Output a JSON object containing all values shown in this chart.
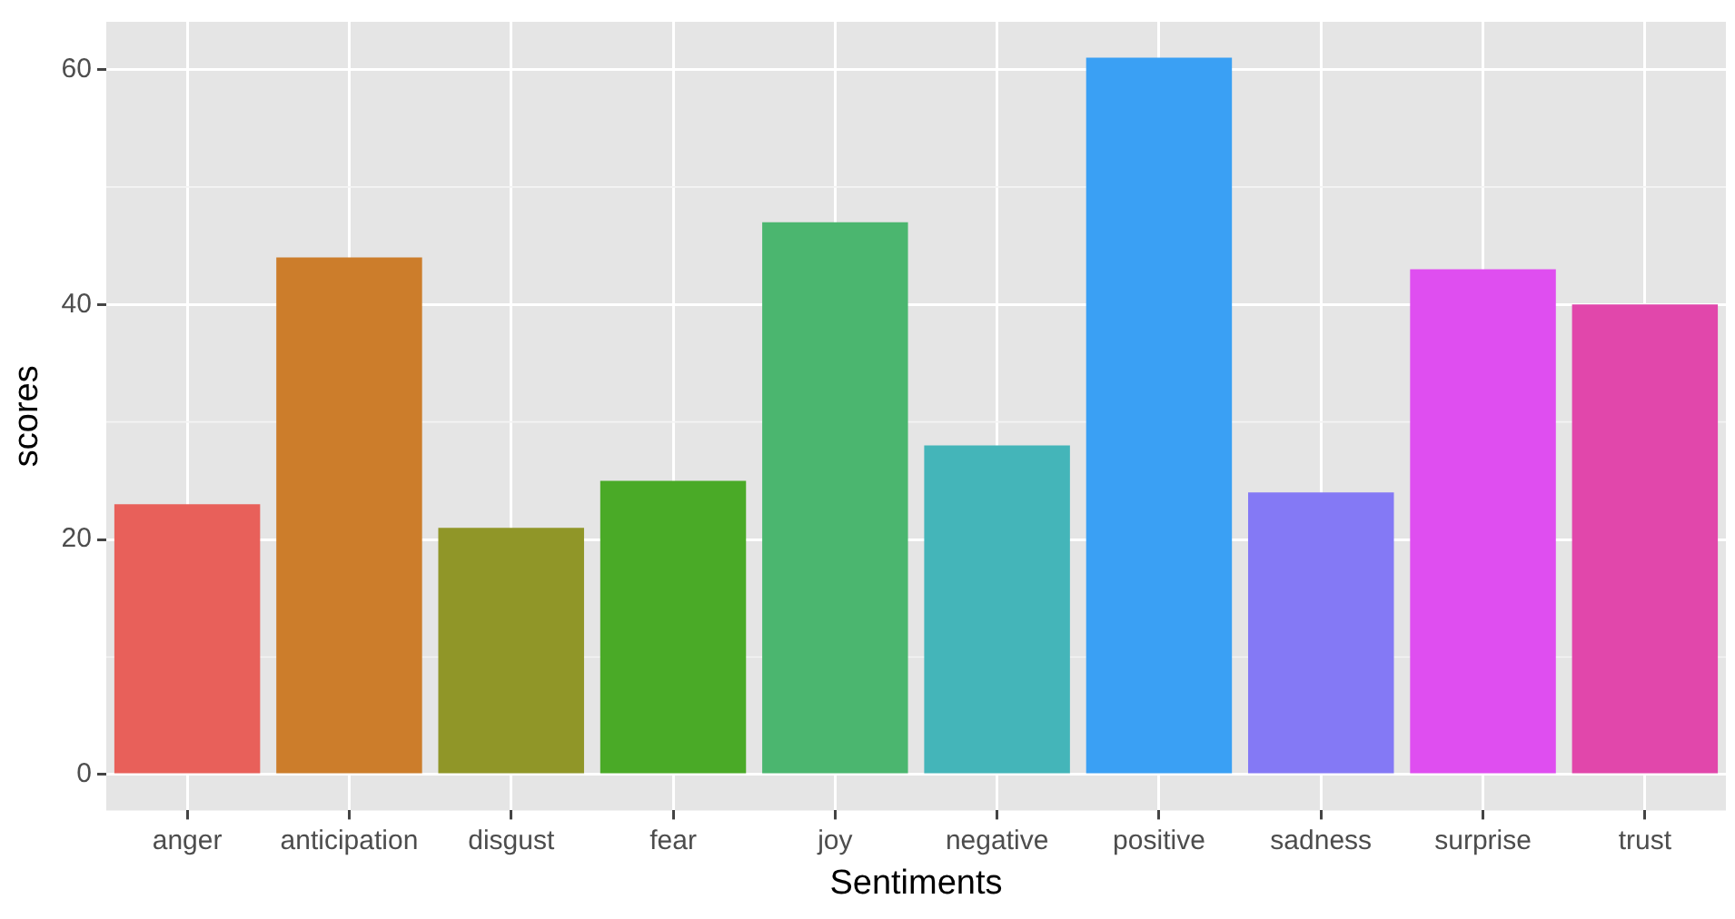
{
  "chart_data": {
    "type": "bar",
    "xlabel": "Sentiments",
    "ylabel": "scores",
    "categories": [
      "anger",
      "anticipation",
      "disgust",
      "fear",
      "joy",
      "negative",
      "positive",
      "sadness",
      "surprise",
      "trust"
    ],
    "values": [
      23,
      44,
      21,
      25,
      47,
      28,
      61,
      24,
      43,
      40
    ],
    "colors": [
      "#e8605a",
      "#cc7d2b",
      "#909628",
      "#4aaa27",
      "#4bb66f",
      "#44b5b9",
      "#3aa0f4",
      "#8479f5",
      "#df4ef0",
      "#e147ab"
    ],
    "ylim": [
      -3.05,
      64.05
    ],
    "yticks": [
      0,
      20,
      40,
      60
    ],
    "grid": true
  }
}
